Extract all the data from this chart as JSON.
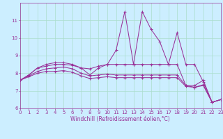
{
  "xlabel": "Windchill (Refroidissement éolien,°C)",
  "background_color": "#cceeff",
  "grid_color": "#aaddcc",
  "line_color": "#993399",
  "x": [
    0,
    1,
    2,
    3,
    4,
    5,
    6,
    7,
    8,
    9,
    10,
    11,
    12,
    13,
    14,
    15,
    16,
    17,
    18,
    19,
    20,
    21,
    22,
    23
  ],
  "series": [
    [
      7.6,
      7.9,
      8.3,
      8.5,
      8.6,
      8.6,
      8.5,
      8.3,
      7.9,
      8.3,
      8.5,
      9.3,
      11.5,
      8.5,
      11.5,
      10.5,
      9.8,
      8.5,
      10.3,
      8.5,
      8.5,
      7.5,
      6.35,
      6.5
    ],
    [
      7.6,
      7.9,
      8.3,
      8.4,
      8.5,
      8.5,
      8.45,
      8.3,
      8.25,
      8.4,
      8.5,
      8.5,
      8.5,
      8.5,
      8.5,
      8.5,
      8.5,
      8.5,
      8.5,
      7.3,
      7.3,
      7.6,
      6.35,
      6.5
    ],
    [
      7.6,
      7.85,
      8.1,
      8.25,
      8.3,
      8.35,
      8.25,
      8.0,
      7.85,
      7.9,
      7.95,
      7.9,
      7.9,
      7.9,
      7.9,
      7.9,
      7.9,
      7.9,
      7.9,
      7.3,
      7.2,
      7.35,
      6.35,
      6.5
    ],
    [
      7.6,
      7.8,
      8.0,
      8.1,
      8.1,
      8.15,
      8.05,
      7.85,
      7.7,
      7.75,
      7.8,
      7.75,
      7.75,
      7.75,
      7.75,
      7.75,
      7.75,
      7.75,
      7.75,
      7.25,
      7.2,
      7.3,
      6.35,
      6.5
    ]
  ],
  "ylim": [
    6,
    12
  ],
  "xlim": [
    0,
    23
  ],
  "yticks": [
    6,
    7,
    8,
    9,
    10,
    11
  ],
  "xticks": [
    0,
    1,
    2,
    3,
    4,
    5,
    6,
    7,
    8,
    9,
    10,
    11,
    12,
    13,
    14,
    15,
    16,
    17,
    18,
    19,
    20,
    21,
    22,
    23
  ],
  "tick_fontsize": 5.0,
  "xlabel_fontsize": 5.5
}
